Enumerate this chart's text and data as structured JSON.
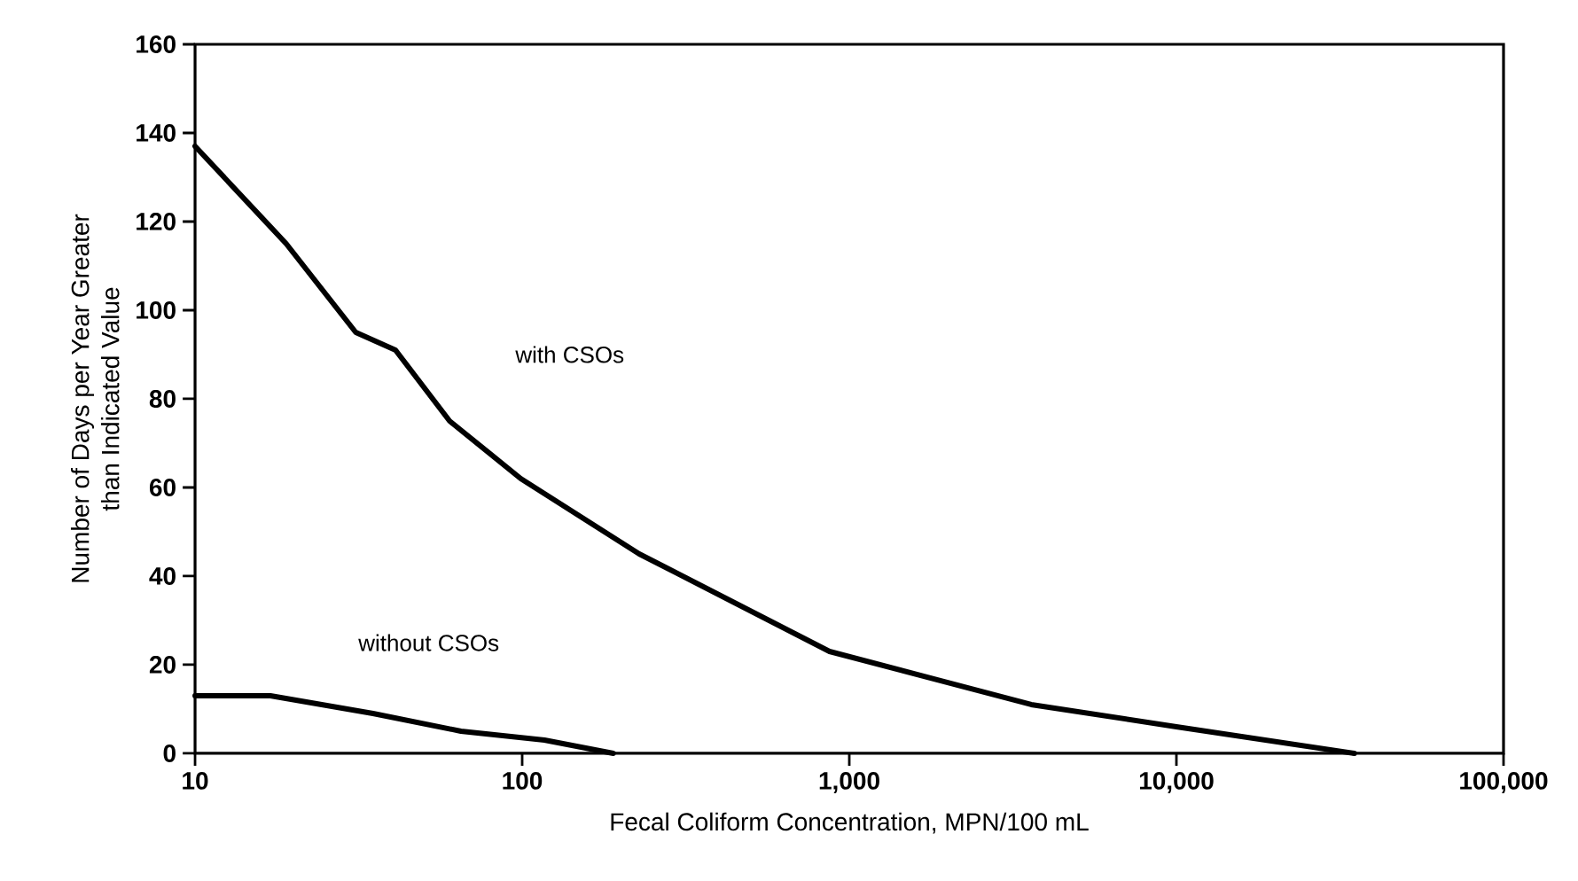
{
  "chart_data": {
    "type": "line",
    "xlabel": "Fecal Coliform Concentration, MPN/100 mL",
    "ylabel": "Number of Days per Year Greater\nthan Indicated Value",
    "log": "x",
    "xlim": [
      10,
      100000
    ],
    "ylim": [
      0,
      160
    ],
    "xticks": [
      10,
      100,
      {
        "value": 1000,
        "label": "1,000"
      },
      {
        "value": 10000,
        "label": "10,000"
      },
      {
        "value": 100000,
        "label": "100,000"
      }
    ],
    "yticks": [
      0,
      20,
      40,
      60,
      80,
      100,
      120,
      140,
      160
    ],
    "marker": "none",
    "line_style": "solid",
    "series": [
      {
        "color": "#000000",
        "x": [
          10,
          19,
          31,
          41,
          60,
          99,
          228,
          870,
          3600,
          10000,
          35000
        ],
        "values": [
          137,
          115,
          95,
          91,
          75,
          62,
          45,
          23,
          11,
          6,
          0
        ]
      },
      {
        "color": "#000000",
        "x": [
          10,
          17,
          35,
          65,
          117,
          190
        ],
        "values": [
          13,
          13,
          9,
          5,
          3,
          0
        ]
      }
    ],
    "annotations": [
      "with CSOs",
      "without CSOs"
    ]
  }
}
